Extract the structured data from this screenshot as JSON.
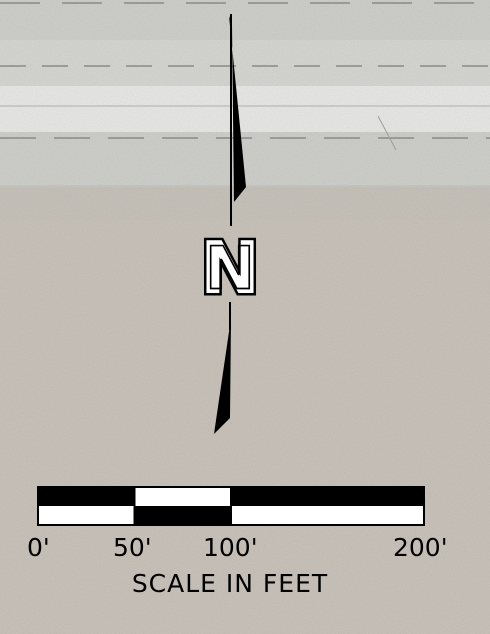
{
  "colors": {
    "ground": "#c9c3bb",
    "road": "#e8e8e6",
    "road_shoulder": "#d2d3cf",
    "lane_marking": "#8a8a88",
    "ink": "#000000",
    "paper": "#ffffff"
  },
  "north_arrow": {
    "letter": "N",
    "icon": "north-arrow-icon"
  },
  "scale_bar": {
    "unit_title": "SCALE IN FEET",
    "ticks": [
      {
        "label": "0'",
        "value": 0
      },
      {
        "label": "50'",
        "value": 50
      },
      {
        "label": "100'",
        "value": 100
      },
      {
        "label": "200'",
        "value": 200
      }
    ],
    "range_ft": [
      0,
      200
    ],
    "segments": [
      {
        "from": 0,
        "to": 50,
        "top": "black",
        "bottom": "white"
      },
      {
        "from": 50,
        "to": 100,
        "top": "white",
        "bottom": "black"
      },
      {
        "from": 100,
        "to": 200,
        "top": "black",
        "bottom": "white"
      }
    ]
  }
}
